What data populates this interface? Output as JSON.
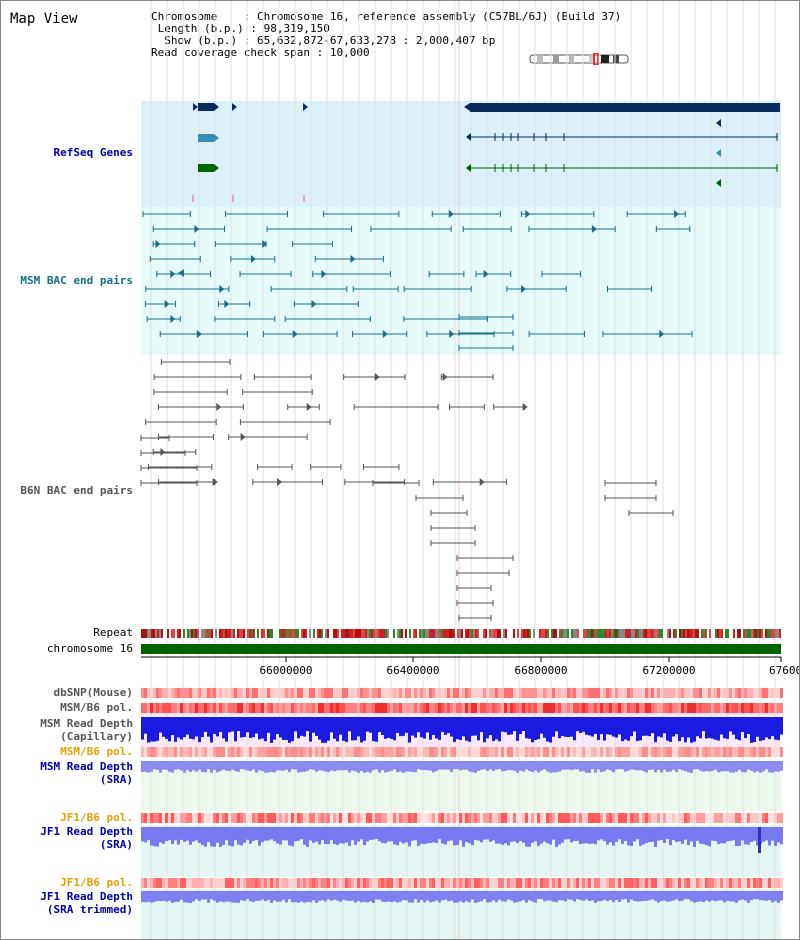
{
  "app": {
    "title": "Map View"
  },
  "info": {
    "chromosome_key": "Chromosome",
    "chromosome_val": "Chromosome 16, reference assembly (C57BL/6J) (Build 37)",
    "length_key": "Length (b.p.)",
    "length_val": "98,319,150",
    "show_key": "Show (b.p.)",
    "show_val": "65,632,872-67,633,278 : 2,000,407 bp",
    "span_key": "Read coverage check span",
    "span_val": "10,000"
  },
  "tracks": {
    "refseq": "RefSeq Genes",
    "msm_bac": "MSM BAC end pairs",
    "b6n_bac": "B6N BAC end pairs",
    "repeat": "Repeat",
    "chromosome": "chromosome 16",
    "dbsnp": "dbSNP(Mouse)",
    "msm_pol_1": "MSM/B6 pol.",
    "msm_depth_cap_1": "MSM Read Depth",
    "msm_depth_cap_2": "(Capillary)",
    "msm_pol_2": "MSM/B6 pol.",
    "msm_depth_sra_1": "MSM Read Depth",
    "msm_depth_sra_2": "(SRA)",
    "jf1_pol_1": "JF1/B6 pol.",
    "jf1_depth_1": "JF1 Read Depth",
    "jf1_depth_2": "(SRA)",
    "jf1_pol_2": "JF1/B6 pol.",
    "jf1_trim_1": "JF1 Read Depth",
    "jf1_trim_2": "(SRA trimmed)"
  },
  "axis": {
    "ticks": [
      "66000000",
      "66400000",
      "66800000",
      "67200000",
      "67600"
    ]
  },
  "colors": {
    "refseq_bg": "#dcf0fa",
    "msm_bac_bg": "#e6fafa",
    "gene_dark": "#0a2c5c",
    "gene_mid": "#3c8cb4",
    "gene_green": "#006400",
    "msm_pair": "#1a6e88",
    "b6n_pair": "#555555",
    "chromosome_bar": "#006400",
    "label_blue": "#0000aa",
    "label_teal": "#1a6e88",
    "label_grey": "#555555",
    "label_orange": "#e8a000"
  }
}
